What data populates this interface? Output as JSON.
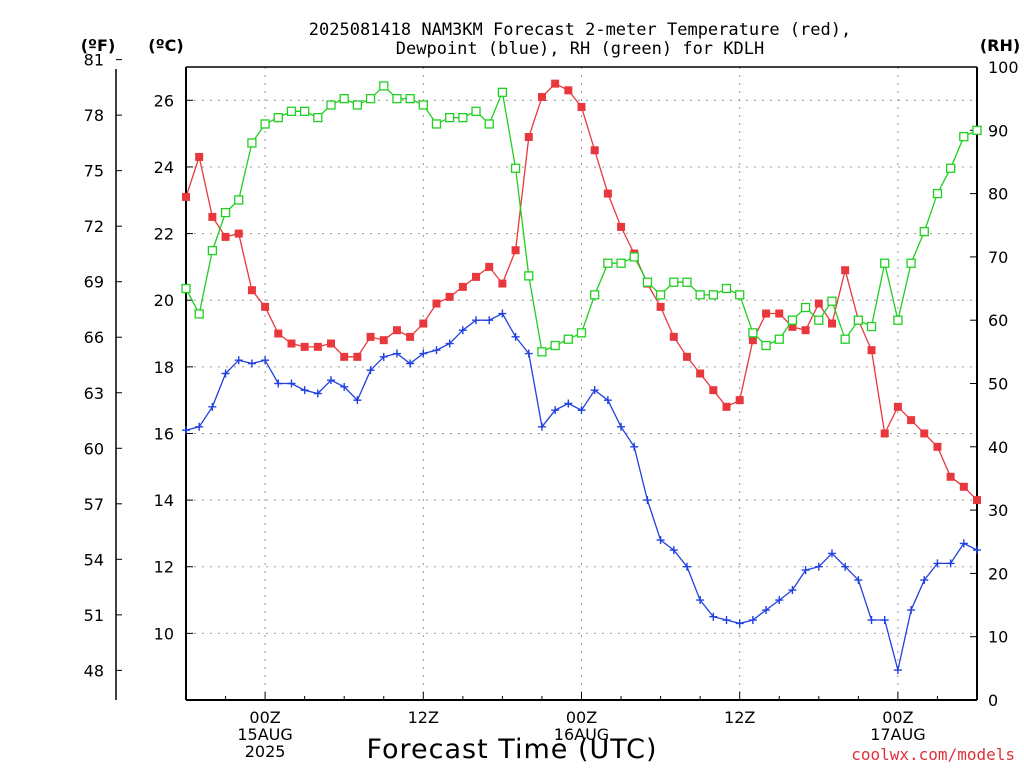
{
  "title_lines": [
    "2025081418 NAM3KM Forecast 2-meter Temperature (red),",
    "Dewpoint (blue), RH (green) for KDLH"
  ],
  "units": {
    "fahrenheit": "(ºF)",
    "celsius": "(ºC)",
    "rh": "(RH)"
  },
  "xlabel": "Forecast Time (UTC)",
  "credit": "coolwx.com/models",
  "colors": {
    "temperature": "#e8383d",
    "dewpoint": "#2040e0",
    "rh": "#20d020"
  },
  "chart_data": {
    "type": "line",
    "title": "2025081418 NAM3KM Forecast 2-meter Temperature (red), Dewpoint (blue), RH (green) for KDLH",
    "xlabel": "Forecast Time (UTC)",
    "x_unit": "hours from 2025-08-14 18Z",
    "x": [
      0,
      1,
      2,
      3,
      4,
      5,
      6,
      7,
      8,
      9,
      10,
      11,
      12,
      13,
      14,
      15,
      16,
      17,
      18,
      19,
      20,
      21,
      22,
      23,
      24,
      25,
      26,
      27,
      28,
      29,
      30,
      31,
      32,
      33,
      34,
      35,
      36,
      37,
      38,
      39,
      40,
      41,
      42,
      43,
      44,
      45,
      46,
      47,
      48,
      49,
      50,
      51,
      52,
      53,
      54,
      55,
      56,
      57,
      58,
      59,
      60
    ],
    "x_ticks": [
      {
        "x": 6,
        "lines": [
          "00Z",
          "15AUG",
          "2025"
        ]
      },
      {
        "x": 18,
        "lines": [
          "12Z"
        ]
      },
      {
        "x": 30,
        "lines": [
          "00Z",
          "16AUG"
        ]
      },
      {
        "x": 42,
        "lines": [
          "12Z"
        ]
      },
      {
        "x": 54,
        "lines": [
          "00Z",
          "17AUG"
        ]
      }
    ],
    "xlim": [
      0,
      60
    ],
    "y_left_celsius": {
      "ylim": [
        8,
        27
      ],
      "ticks": [
        10,
        12,
        14,
        16,
        18,
        20,
        22,
        24,
        26
      ],
      "unit": "(ºC)"
    },
    "y_left_fahrenheit": {
      "ticks": [
        48,
        51,
        54,
        57,
        60,
        63,
        66,
        69,
        72,
        75,
        78,
        81
      ],
      "unit": "(ºF)"
    },
    "y_right_rh": {
      "ylim": [
        0,
        100
      ],
      "ticks": [
        0,
        10,
        20,
        30,
        40,
        50,
        60,
        70,
        80,
        90,
        100
      ],
      "unit": "(RH)"
    },
    "grid": true,
    "series": [
      {
        "name": "Temperature",
        "axis": "celsius",
        "marker": "filled-square",
        "color": "#e8383d",
        "values": [
          23.1,
          24.3,
          22.5,
          21.9,
          22.0,
          20.3,
          19.8,
          19.0,
          18.7,
          18.6,
          18.6,
          18.7,
          18.3,
          18.3,
          18.9,
          18.8,
          19.1,
          18.9,
          19.3,
          19.9,
          20.1,
          20.4,
          20.7,
          21.0,
          20.5,
          21.5,
          24.9,
          26.1,
          26.5,
          26.3,
          25.8,
          24.5,
          23.2,
          22.2,
          21.4,
          20.5,
          19.8,
          18.9,
          18.3,
          17.8,
          17.3,
          16.8,
          17.0,
          18.8,
          19.6,
          19.6,
          19.2,
          19.1,
          19.9,
          19.3,
          20.9,
          19.4,
          18.5,
          16.0,
          16.8,
          16.4,
          16.0,
          15.6,
          14.7,
          14.4,
          14.0
        ]
      },
      {
        "name": "Dewpoint",
        "axis": "celsius",
        "marker": "plus",
        "color": "#2040e0",
        "values": [
          16.1,
          16.2,
          16.8,
          17.8,
          18.2,
          18.1,
          18.2,
          17.5,
          17.5,
          17.3,
          17.2,
          17.6,
          17.4,
          17.0,
          17.9,
          18.3,
          18.4,
          18.1,
          18.4,
          18.5,
          18.7,
          19.1,
          19.4,
          19.4,
          19.6,
          18.9,
          18.4,
          16.2,
          16.7,
          16.9,
          16.7,
          17.3,
          17.0,
          16.2,
          15.6,
          14.0,
          12.8,
          12.5,
          12.0,
          11.0,
          10.5,
          10.4,
          10.3,
          10.4,
          10.7,
          11.0,
          11.3,
          11.9,
          12.0,
          12.4,
          12.0,
          11.6,
          10.4,
          10.4,
          8.9,
          10.7,
          11.6,
          12.1,
          12.1,
          12.7,
          12.5
        ]
      },
      {
        "name": "RH",
        "axis": "rh",
        "marker": "open-square",
        "color": "#20d020",
        "values": [
          65,
          61,
          71,
          77,
          79,
          88,
          91,
          92,
          93,
          93,
          92,
          94,
          95,
          94,
          95,
          97,
          95,
          95,
          94,
          91,
          92,
          92,
          93,
          91,
          96,
          84,
          67,
          55,
          56,
          57,
          58,
          64,
          69,
          69,
          70,
          66,
          64,
          66,
          66,
          64,
          64,
          65,
          64,
          58,
          56,
          57,
          60,
          62,
          60,
          63,
          57,
          60,
          59,
          69,
          60,
          69,
          74,
          80,
          84,
          89,
          90
        ]
      }
    ]
  }
}
